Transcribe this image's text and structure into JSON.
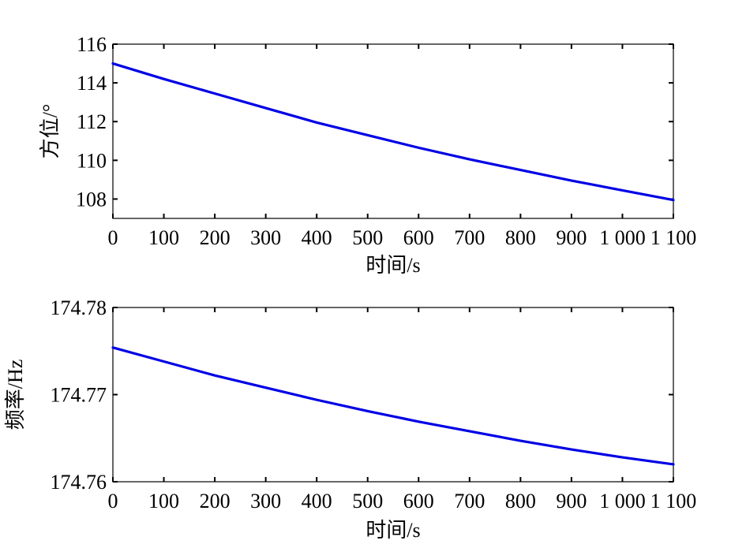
{
  "chart_data": [
    {
      "type": "line",
      "title": "",
      "xlabel": "时间/s",
      "ylabel": "方位/°",
      "xlim": [
        0,
        1100
      ],
      "ylim": [
        107,
        116
      ],
      "xticks": [
        0,
        100,
        200,
        300,
        400,
        500,
        600,
        700,
        800,
        900,
        1000,
        1100
      ],
      "xtick_labels": [
        "0",
        "100",
        "200",
        "300",
        "400",
        "500",
        "600",
        "700",
        "800",
        "900",
        "1 000",
        "1 100"
      ],
      "yticks": [
        108,
        110,
        112,
        114,
        116
      ],
      "ytick_labels": [
        "108",
        "110",
        "112",
        "114",
        "116"
      ],
      "grid": false,
      "series": [
        {
          "color": "#0000e6",
          "x": [
            0,
            100,
            200,
            300,
            400,
            500,
            600,
            700,
            800,
            900,
            1000,
            1100
          ],
          "y": [
            115.0,
            114.2,
            113.45,
            112.7,
            111.95,
            111.3,
            110.65,
            110.05,
            109.5,
            108.95,
            108.45,
            107.95
          ]
        }
      ]
    },
    {
      "type": "line",
      "title": "",
      "xlabel": "时间/s",
      "ylabel": "频率/Hz",
      "xlim": [
        0,
        1100
      ],
      "ylim": [
        174.76,
        174.78
      ],
      "xticks": [
        0,
        100,
        200,
        300,
        400,
        500,
        600,
        700,
        800,
        900,
        1000,
        1100
      ],
      "xtick_labels": [
        "0",
        "100",
        "200",
        "300",
        "400",
        "500",
        "600",
        "700",
        "800",
        "900",
        "1 000",
        "1 100"
      ],
      "yticks": [
        174.76,
        174.77,
        174.78
      ],
      "ytick_labels": [
        "174.76",
        "174.77",
        "174.78"
      ],
      "grid": false,
      "series": [
        {
          "color": "#0000e6",
          "x": [
            0,
            100,
            200,
            300,
            400,
            500,
            600,
            700,
            800,
            900,
            1000,
            1100
          ],
          "y": [
            174.7754,
            174.7738,
            174.7722,
            174.7708,
            174.7694,
            174.7681,
            174.7669,
            174.7658,
            174.7647,
            174.7637,
            174.7628,
            174.762
          ]
        }
      ]
    }
  ]
}
